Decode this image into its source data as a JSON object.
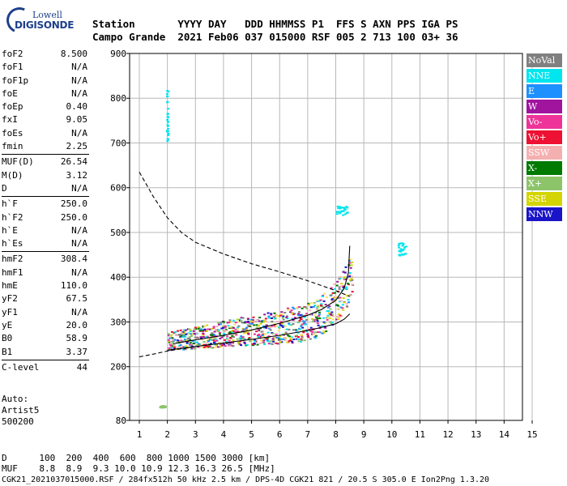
{
  "logo": {
    "line1": "Lowell",
    "line2": "DIGISONDE"
  },
  "header": {
    "line1": "Station       YYYY DAY   DDD HHMMSS P1  FFS S AXN PPS IGA PS",
    "line2": "Campo Grande  2021 Feb06 037 015000 RSF 005 2 713 100 03+ 36"
  },
  "params": [
    [
      {
        "k": "foF2",
        "v": "8.500"
      },
      {
        "k": "foF1",
        "v": "N/A"
      },
      {
        "k": "foF1p",
        "v": "N/A"
      },
      {
        "k": "foE",
        "v": "N/A"
      },
      {
        "k": "foEp",
        "v": "0.40"
      },
      {
        "k": "fxI",
        "v": "9.05"
      },
      {
        "k": "foEs",
        "v": "N/A"
      },
      {
        "k": "fmin",
        "v": "2.25"
      }
    ],
    [
      {
        "k": "MUF(D)",
        "v": "26.54"
      },
      {
        "k": "M(D)",
        "v": "3.12"
      },
      {
        "k": "D",
        "v": "N/A"
      }
    ],
    [
      {
        "k": "h`F",
        "v": "250.0"
      },
      {
        "k": "h`F2",
        "v": "250.0"
      },
      {
        "k": "h`E",
        "v": "N/A"
      },
      {
        "k": "h`Es",
        "v": "N/A"
      }
    ],
    [
      {
        "k": "hmF2",
        "v": "308.4"
      },
      {
        "k": "hmF1",
        "v": "N/A"
      },
      {
        "k": "hmE",
        "v": "110.0"
      },
      {
        "k": "yF2",
        "v": "67.5"
      },
      {
        "k": "yF1",
        "v": "N/A"
      },
      {
        "k": "yE",
        "v": "20.0"
      },
      {
        "k": "B0",
        "v": "58.9"
      },
      {
        "k": "B1",
        "v": "3.37"
      }
    ],
    [
      {
        "k": "C-level",
        "v": "44"
      }
    ]
  ],
  "auto": {
    "l1": "Auto:",
    "l2": "Artist5",
    "l3": "500200"
  },
  "legend": [
    {
      "label": "NoVal",
      "color": "#808080",
      "text": "#ffffff"
    },
    {
      "label": "NNE",
      "color": "#00e5ee",
      "text": "#ffffff"
    },
    {
      "label": "E",
      "color": "#1e90ff",
      "text": "#ffffff"
    },
    {
      "label": "W",
      "color": "#a0149e",
      "text": "#ffffff"
    },
    {
      "label": "Vo-",
      "color": "#ee3399",
      "text": "#ffffff"
    },
    {
      "label": "Vo+",
      "color": "#ee1133",
      "text": "#ffffff"
    },
    {
      "label": "SSW",
      "color": "#f4b0b0",
      "text": "#ffffff"
    },
    {
      "label": "X-",
      "color": "#007a00",
      "text": "#ffffff"
    },
    {
      "label": "X+",
      "color": "#8cc46a",
      "text": "#ffffff"
    },
    {
      "label": "SSE",
      "color": "#d4d400",
      "text": "#ffffff"
    },
    {
      "label": "NNW",
      "color": "#1a14c8",
      "text": "#ffffff"
    }
  ],
  "muf_table": {
    "line1": "D      100  200  400  600  800 1000 1500 3000 [km]",
    "line2": "MUF    8.8  8.9  9.3 10.0 10.9 12.3 16.3 26.5 [MHz]"
  },
  "footer": "CGK21_2021037015000.RSF / 284fx512h 50 kHz 2.5 km / DPS-4D CGK21 821 / 20.5 S 305.0 E Ion2Png 1.3.20",
  "chart_data": {
    "type": "scatter",
    "xlim": [
      1,
      15
    ],
    "ylim": [
      80,
      900
    ],
    "x_ticks": [
      1,
      2,
      3,
      4,
      5,
      6,
      7,
      8,
      9,
      10,
      11,
      12,
      13,
      14,
      15
    ],
    "y_ticks": [
      80,
      200,
      300,
      400,
      500,
      600,
      700,
      800,
      900
    ],
    "grid": true,
    "legend_position": "right",
    "series": [
      {
        "name": "virtual height trace (dashed)",
        "style": "dashed",
        "x": [
          1.0,
          1.5,
          2.0,
          2.5,
          3.0,
          4.0,
          5.0,
          6.0,
          7.0,
          8.0,
          8.5
        ],
        "y": [
          635,
          580,
          533,
          500,
          478,
          452,
          430,
          412,
          392,
          370,
          357
        ]
      },
      {
        "name": "lower trace (dashed)",
        "style": "dashed",
        "x": [
          1.0,
          1.5,
          2.0,
          2.5,
          3.0
        ],
        "y": [
          222,
          228,
          235,
          240,
          245
        ]
      },
      {
        "name": "profile (solid lower)",
        "style": "solid",
        "x": [
          2.0,
          3.0,
          4.0,
          5.0,
          6.0,
          7.0,
          7.5,
          8.0,
          8.3,
          8.5
        ],
        "y": [
          237,
          245,
          253,
          261,
          270,
          281,
          288,
          296,
          306,
          318
        ]
      },
      {
        "name": "profile (solid upper)",
        "style": "solid",
        "x": [
          2.2,
          3.0,
          4.0,
          5.0,
          6.0,
          7.0,
          7.5,
          8.0,
          8.3,
          8.45,
          8.5
        ],
        "y": [
          251,
          260,
          270,
          282,
          297,
          315,
          328,
          348,
          375,
          410,
          470
        ]
      }
    ],
    "echo_clusters": [
      {
        "x": [
          1.95,
          2.0
        ],
        "y": [
          700,
          820
        ],
        "color": "NNE"
      },
      {
        "x": [
          8.0,
          8.4
        ],
        "y": [
          540,
          560
        ],
        "color": "NNE"
      },
      {
        "x": [
          10.2,
          10.5
        ],
        "y": [
          450,
          480
        ],
        "color": "NNE"
      },
      {
        "x": [
          1.7,
          1.9
        ],
        "y": [
          110,
          114
        ],
        "color": "X+"
      },
      {
        "x": [
          2.0,
          8.6
        ],
        "y": [
          240,
          480
        ],
        "color": "mixed"
      }
    ]
  }
}
